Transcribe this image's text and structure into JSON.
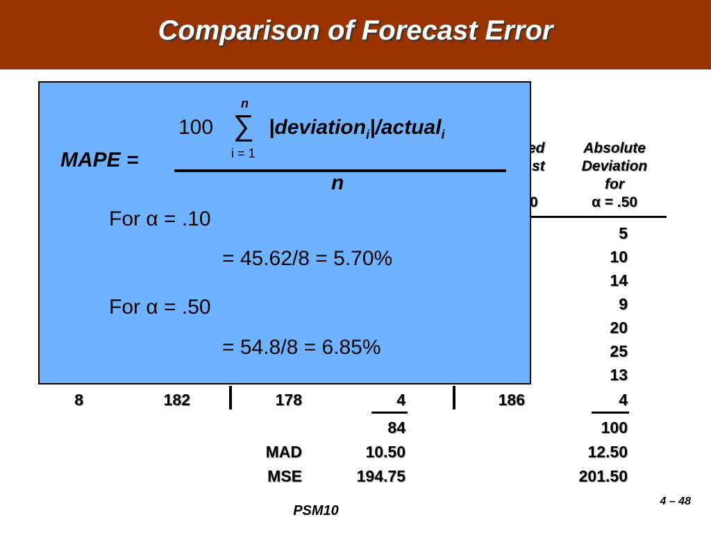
{
  "title": "Comparison of Forecast Error",
  "table": {
    "header_partial_left": [
      "ed",
      "st",
      "0"
    ],
    "header_right": [
      "Absolute",
      "Deviation",
      "for",
      "α = .50"
    ],
    "right_column_rows": [
      "5",
      "10",
      "14",
      "9",
      "20",
      "25",
      "13"
    ],
    "last_row": {
      "quarter": "8",
      "actual": "182",
      "forecast_10": "178",
      "absdev_10": "4",
      "forecast_50": "186",
      "absdev_50": "4"
    },
    "totals": {
      "absdev_10": "84",
      "absdev_50": "100"
    },
    "mad": {
      "label": "MAD",
      "v10": "10.50",
      "v50": "12.50"
    },
    "mse": {
      "label": "MSE",
      "v10": "194.75",
      "v50": "201.50"
    }
  },
  "formula": {
    "lhs": "MAPE =",
    "coef": "100",
    "sigma": "∑",
    "upper": "n",
    "lower": "i = 1",
    "numer_a": "|deviation",
    "numer_sub_a": "i",
    "numer_b": "|/actual",
    "numer_sub_b": "i",
    "denominator": "n",
    "case1_label": "For α = .10",
    "case1_result": "= 45.62/8 = 5.70%",
    "case2_label": "For α = .50",
    "case2_result": "= 54.8/8 = 6.85%"
  },
  "footer": {
    "center": "PSM10",
    "page": "4 – 48"
  },
  "colors": {
    "title_bar": "#993300",
    "overlay_box": "#6fb2ff"
  }
}
